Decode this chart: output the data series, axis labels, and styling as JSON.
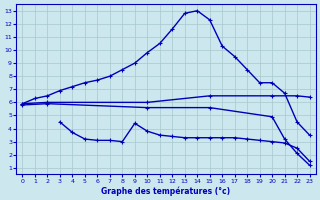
{
  "xlabel": "Graphe des températures (°c)",
  "bg_color": "#cce8ee",
  "grid_color": "#a8c8cc",
  "line_color": "#0000bb",
  "xlim": [
    -0.5,
    23.5
  ],
  "ylim": [
    0.5,
    13.5
  ],
  "xticks": [
    0,
    1,
    2,
    3,
    4,
    5,
    6,
    7,
    8,
    9,
    10,
    11,
    12,
    13,
    14,
    15,
    16,
    17,
    18,
    19,
    20,
    21,
    22,
    23
  ],
  "yticks": [
    1,
    2,
    3,
    4,
    5,
    6,
    7,
    8,
    9,
    10,
    11,
    12,
    13
  ],
  "line1_x": [
    0,
    1,
    2,
    3,
    4,
    5,
    6,
    7,
    8,
    9,
    10,
    11,
    12,
    13,
    14,
    15,
    16,
    17,
    18,
    19,
    20,
    21,
    22,
    23
  ],
  "line1_y": [
    5.9,
    6.3,
    6.5,
    6.9,
    7.2,
    7.5,
    7.7,
    8.0,
    8.5,
    9.0,
    9.8,
    10.5,
    11.6,
    12.8,
    13.0,
    12.3,
    10.3,
    9.5,
    8.5,
    7.5,
    7.5,
    6.7,
    4.5,
    3.5
  ],
  "line2_x": [
    0,
    2,
    10,
    15,
    20,
    22,
    23
  ],
  "line2_y": [
    5.9,
    6.0,
    6.0,
    6.5,
    6.5,
    6.5,
    6.4
  ],
  "line3_x": [
    0,
    2,
    10,
    15,
    20,
    21,
    22,
    23
  ],
  "line3_y": [
    5.8,
    5.9,
    5.6,
    5.6,
    4.9,
    3.2,
    2.1,
    1.2
  ],
  "line4_x": [
    3,
    4,
    5,
    6,
    7,
    8,
    9,
    10,
    11,
    12,
    13,
    14,
    15,
    16,
    17,
    18,
    19,
    20,
    21,
    22,
    23
  ],
  "line4_y": [
    4.5,
    3.7,
    3.2,
    3.1,
    3.1,
    3.0,
    4.4,
    3.8,
    3.5,
    3.4,
    3.3,
    3.3,
    3.3,
    3.3,
    3.3,
    3.2,
    3.1,
    3.0,
    2.9,
    2.5,
    1.5
  ]
}
